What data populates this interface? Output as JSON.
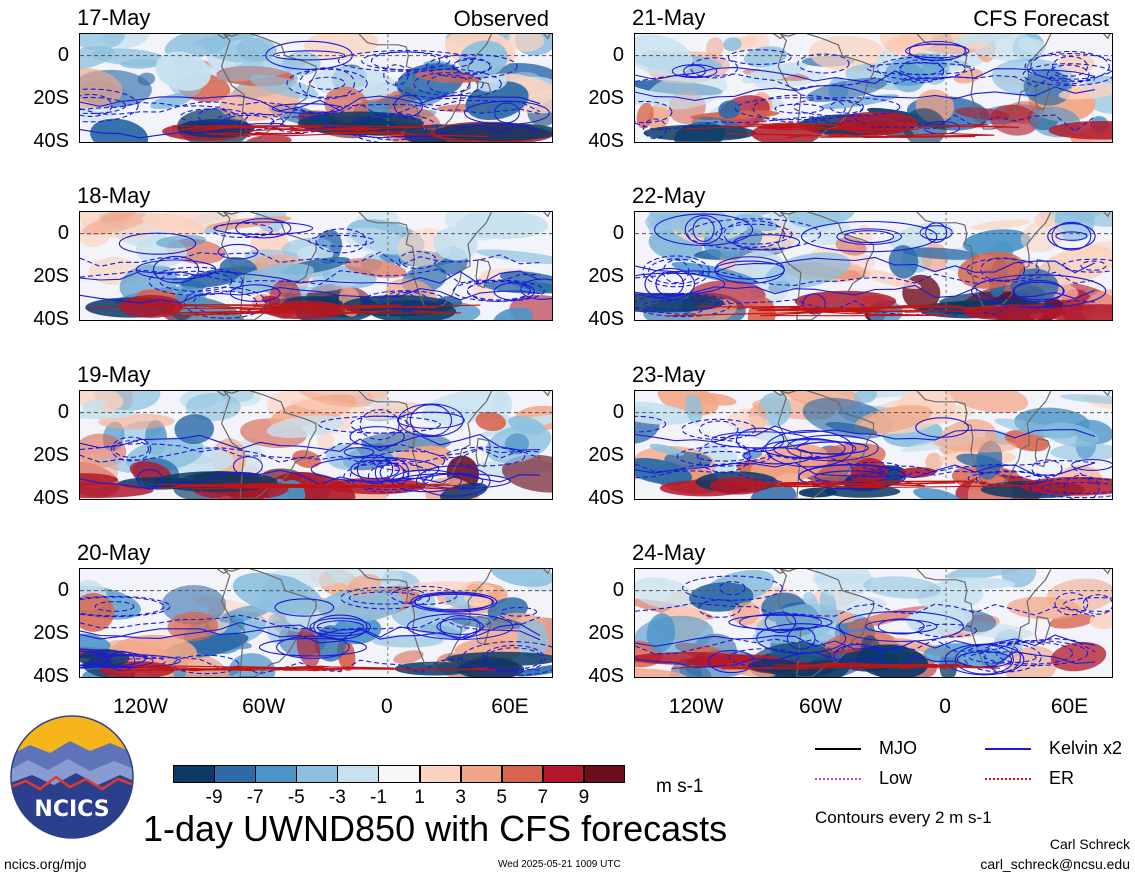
{
  "panels": [
    {
      "date": "17-May",
      "source": "Observed",
      "seed": 11
    },
    {
      "date": "18-May",
      "source": "",
      "seed": 23
    },
    {
      "date": "19-May",
      "source": "",
      "seed": 37
    },
    {
      "date": "20-May",
      "source": "",
      "seed": 41
    },
    {
      "date": "21-May",
      "source": "CFS Forecast",
      "seed": 53
    },
    {
      "date": "22-May",
      "source": "",
      "seed": 67
    },
    {
      "date": "23-May",
      "source": "",
      "seed": 71
    },
    {
      "date": "24-May",
      "source": "",
      "seed": 89
    }
  ],
  "y_axis": [
    "0",
    "20S",
    "40S"
  ],
  "x_axis": [
    "120W",
    "60W",
    "0",
    "60E"
  ],
  "colorbar": {
    "colors": [
      "#0b3a66",
      "#2c6aa8",
      "#4a94c8",
      "#8cc0de",
      "#c7e1ef",
      "#f7f7f7",
      "#fbd3bf",
      "#f3a687",
      "#d9644e",
      "#b2182b",
      "#6b0d1d"
    ],
    "ticks": [
      "-9",
      "-7",
      "-5",
      "-3",
      "-1",
      "1",
      "3",
      "5",
      "7",
      "9"
    ],
    "units": "m s-1"
  },
  "legend": {
    "items": [
      {
        "label": "MJO",
        "color": "#000000",
        "style": "solid"
      },
      {
        "label": "Kelvin x2",
        "color": "#1a1adb",
        "style": "solid"
      },
      {
        "label": "Low",
        "color": "#a050d0",
        "style": "dotted"
      },
      {
        "label": "ER",
        "color": "#d01010",
        "style": "dotted"
      }
    ],
    "contour_note": "Contours every 2 m s-1"
  },
  "title": "1-day UWND850 with CFS forecasts",
  "logo_text": "NCICS",
  "footer": {
    "url": "ncics.org/mjo",
    "timestamp": "Wed 2025-05-21 1009 UTC",
    "author": "Carl Schreck",
    "email": "carl_schreck@ncsu.edu"
  }
}
